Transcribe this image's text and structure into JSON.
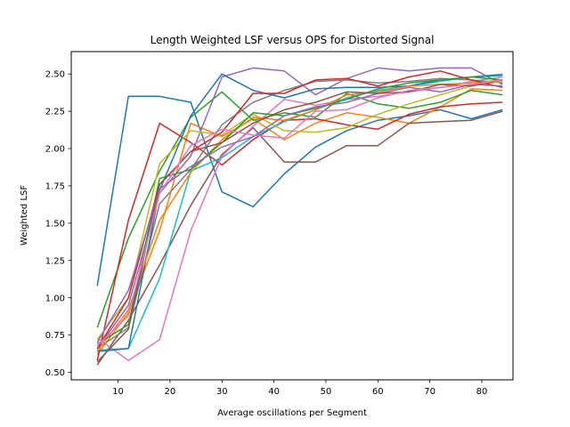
{
  "chart_data": {
    "type": "line",
    "title": "Length Weighted LSF versus OPS for Distorted Signal",
    "xlabel": "Average oscillations per Segment",
    "ylabel": "Weighted LSF",
    "xlim": [
      1,
      86
    ],
    "ylim": [
      0.45,
      2.65
    ],
    "xticks": [
      10,
      20,
      30,
      40,
      50,
      60,
      70,
      80
    ],
    "yticks": [
      0.5,
      0.75,
      1.0,
      1.25,
      1.5,
      1.75,
      2.0,
      2.25,
      2.5
    ],
    "ytick_labels": [
      "0.50",
      "0.75",
      "1.00",
      "1.25",
      "1.50",
      "1.75",
      "2.00",
      "2.25",
      "2.50"
    ],
    "grid": false,
    "legend": "none",
    "x": [
      6,
      12,
      18,
      24,
      30,
      36,
      42,
      48,
      54,
      60,
      66,
      72,
      78,
      84
    ],
    "series": [
      {
        "color": "#1f77b4",
        "values": [
          1.08,
          2.35,
          2.35,
          2.31,
          1.71,
          1.61,
          1.83,
          2.01,
          2.12,
          2.19,
          2.22,
          2.26,
          2.2,
          2.26
        ]
      },
      {
        "color": "#ff7f0e",
        "values": [
          0.62,
          0.9,
          1.45,
          2.17,
          2.08,
          2.2,
          2.06,
          2.17,
          2.24,
          2.21,
          2.17,
          2.28,
          2.4,
          2.39
        ]
      },
      {
        "color": "#2ca02c",
        "values": [
          0.8,
          1.4,
          1.85,
          2.21,
          2.38,
          2.19,
          2.24,
          2.21,
          2.37,
          2.3,
          2.27,
          2.31,
          2.39,
          2.36
        ]
      },
      {
        "color": "#d62728",
        "values": [
          0.58,
          1.52,
          2.17,
          2.04,
          1.89,
          2.06,
          2.19,
          2.2,
          2.16,
          2.13,
          2.23,
          2.28,
          2.3,
          2.31
        ]
      },
      {
        "color": "#9467bd",
        "values": [
          0.66,
          0.95,
          1.7,
          1.95,
          2.48,
          2.54,
          2.52,
          2.36,
          2.47,
          2.54,
          2.52,
          2.54,
          2.54,
          2.43
        ]
      },
      {
        "color": "#8c564b",
        "values": [
          0.55,
          0.85,
          1.22,
          1.62,
          1.96,
          2.14,
          1.91,
          1.91,
          2.02,
          2.02,
          2.17,
          2.18,
          2.19,
          2.25
        ]
      },
      {
        "color": "#e377c2",
        "values": [
          0.73,
          0.58,
          0.72,
          1.45,
          1.95,
          2.15,
          2.33,
          2.29,
          2.33,
          2.35,
          2.38,
          2.41,
          2.45,
          2.48
        ]
      },
      {
        "color": "#7f7f7f",
        "values": [
          0.66,
          0.8,
          1.63,
          1.86,
          2.16,
          2.31,
          2.39,
          2.45,
          2.46,
          2.44,
          2.45,
          2.47,
          2.46,
          2.44
        ]
      },
      {
        "color": "#bcbd22",
        "values": [
          0.72,
          1.0,
          1.9,
          2.12,
          2.09,
          2.23,
          2.12,
          2.11,
          2.14,
          2.23,
          2.3,
          2.36,
          2.42,
          2.45
        ]
      },
      {
        "color": "#17becf",
        "values": [
          0.65,
          0.66,
          1.13,
          1.85,
          1.94,
          2.08,
          2.18,
          2.26,
          2.34,
          2.39,
          2.42,
          2.45,
          2.48,
          2.5
        ]
      },
      {
        "color": "#1f77b4",
        "values": [
          0.64,
          0.66,
          1.72,
          2.22,
          2.5,
          2.39,
          2.34,
          2.4,
          2.41,
          2.41,
          2.42,
          2.46,
          2.48,
          2.49
        ]
      },
      {
        "color": "#ff7f0e",
        "values": [
          0.64,
          0.92,
          1.52,
          1.84,
          2.06,
          2.21,
          2.19,
          2.26,
          2.36,
          2.38,
          2.42,
          2.43,
          2.44,
          2.46
        ]
      },
      {
        "color": "#2ca02c",
        "values": [
          0.69,
          0.82,
          1.8,
          1.86,
          2.04,
          2.24,
          2.22,
          2.27,
          2.33,
          2.4,
          2.44,
          2.46,
          2.48,
          2.46
        ]
      },
      {
        "color": "#d62728",
        "values": [
          0.66,
          1.0,
          1.76,
          1.98,
          2.11,
          2.37,
          2.37,
          2.46,
          2.47,
          2.42,
          2.48,
          2.52,
          2.46,
          2.41
        ]
      },
      {
        "color": "#9467bd",
        "values": [
          0.7,
          1.05,
          1.73,
          1.88,
          2.01,
          2.08,
          2.22,
          2.28,
          2.31,
          2.37,
          2.41,
          2.38,
          2.43,
          2.42
        ]
      },
      {
        "color": "#8c564b",
        "values": [
          0.57,
          0.79,
          1.76,
          1.98,
          2.04,
          2.17,
          2.26,
          2.31,
          2.38,
          2.37,
          2.38,
          2.43,
          2.42,
          2.46
        ]
      },
      {
        "color": "#e377c2",
        "values": [
          0.68,
          0.88,
          1.7,
          2.02,
          2.13,
          2.09,
          2.07,
          2.25,
          2.26,
          2.34,
          2.39,
          2.41,
          2.43,
          2.46
        ]
      }
    ]
  }
}
